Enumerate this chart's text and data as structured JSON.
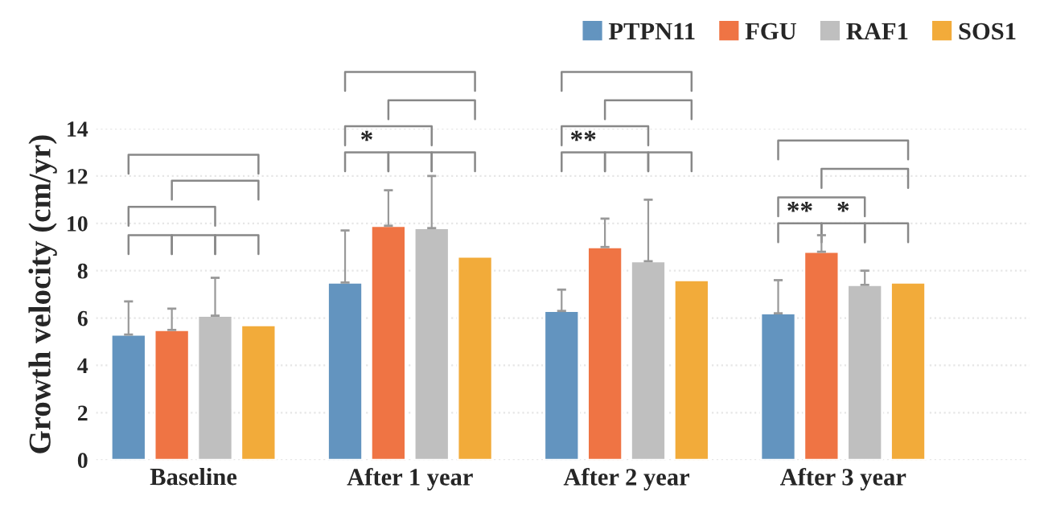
{
  "chart_data": {
    "type": "bar",
    "ylabel": "Growth velocity (cm/yr)",
    "categories": [
      "Baseline",
      "After 1 year",
      "After 2 year",
      "After 3 year"
    ],
    "series": [
      {
        "name": "PTPN11",
        "color": "#6394bf",
        "values": [
          5.3,
          7.5,
          6.3,
          6.2
        ],
        "errors": [
          [
            5.3,
            6.7
          ],
          [
            7.5,
            9.7
          ],
          [
            6.3,
            7.2
          ],
          [
            6.2,
            7.6
          ]
        ]
      },
      {
        "name": "FGU",
        "color": "#ef7444",
        "values": [
          5.5,
          9.9,
          9.0,
          8.8
        ],
        "errors": [
          [
            5.5,
            6.4
          ],
          [
            9.9,
            11.4
          ],
          [
            9.0,
            10.2
          ],
          [
            8.8,
            9.5
          ]
        ]
      },
      {
        "name": "RAF1",
        "color": "#bfbfbf",
        "values": [
          6.1,
          9.8,
          8.4,
          7.4
        ],
        "errors": [
          [
            6.1,
            7.7
          ],
          [
            9.8,
            12.0
          ],
          [
            8.4,
            11.0
          ],
          [
            7.4,
            8.0
          ]
        ]
      },
      {
        "name": "SOS1",
        "color": "#f2ab3a",
        "values": [
          5.7,
          8.6,
          7.6,
          7.5
        ],
        "errors": [
          null,
          null,
          null,
          null
        ]
      }
    ],
    "ylim": [
      0,
      14
    ],
    "yticks": [
      0,
      2,
      4,
      6,
      8,
      10,
      12,
      14
    ],
    "grid": "y",
    "legend": "top right",
    "annotations": [
      "*",
      "**",
      "**",
      "*"
    ]
  }
}
